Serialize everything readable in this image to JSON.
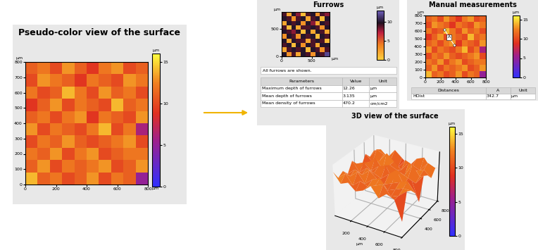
{
  "chart_data": [
    {
      "type": "heatmap",
      "title": "Pseudo-color view of the surface",
      "x_label": "µm",
      "y_label": "µm",
      "xlim": [
        0,
        800
      ],
      "ylim": [
        0,
        800
      ],
      "xticks": [
        0,
        200,
        400,
        600,
        800
      ],
      "yticks": [
        0,
        100,
        200,
        300,
        400,
        500,
        600,
        700,
        800
      ],
      "cells": [
        [
          11,
          12,
          10,
          13,
          11,
          9,
          12,
          13,
          10,
          11
        ],
        [
          10,
          13,
          12,
          11,
          9,
          12,
          11,
          10,
          13,
          12
        ],
        [
          12,
          10,
          11,
          14,
          12,
          10,
          13,
          11,
          12,
          10
        ],
        [
          9,
          11,
          13,
          10,
          12,
          11,
          10,
          14,
          11,
          12
        ],
        [
          11,
          12,
          10,
          12,
          13,
          9,
          12,
          11,
          10,
          13
        ],
        [
          13,
          10,
          12,
          11,
          10,
          12,
          14,
          10,
          12,
          6
        ],
        [
          10,
          12,
          11,
          13,
          11,
          10,
          11,
          12,
          13,
          10
        ],
        [
          12,
          11,
          13,
          10,
          12,
          13,
          10,
          11,
          12,
          12
        ],
        [
          11,
          13,
          10,
          12,
          11,
          12,
          13,
          10,
          11,
          13
        ],
        [
          14,
          11,
          12,
          10,
          11,
          13,
          10,
          12,
          11,
          5
        ]
      ],
      "colorbar": {
        "range": [
          0,
          16
        ],
        "ticks": [
          0,
          5,
          10,
          15
        ],
        "label": "µm"
      }
    },
    {
      "type": "heatmap",
      "title": "Furrows",
      "x_label": "µm",
      "y_label": "µm",
      "xlim": [
        0,
        800
      ],
      "ylim": [
        0,
        800
      ],
      "xticks": [
        0,
        500
      ],
      "yticks": [
        0,
        500
      ],
      "cells": [
        [
          9,
          2,
          10,
          8,
          1,
          9,
          10,
          3,
          9,
          8
        ],
        [
          10,
          9,
          3,
          9,
          10,
          2,
          9,
          10,
          1,
          10
        ],
        [
          2,
          10,
          9,
          10,
          3,
          10,
          8,
          2,
          10,
          9
        ],
        [
          9,
          1,
          10,
          2,
          9,
          9,
          10,
          9,
          3,
          10
        ],
        [
          10,
          9,
          8,
          10,
          1,
          10,
          2,
          10,
          9,
          2
        ],
        [
          3,
          10,
          9,
          3,
          10,
          9,
          10,
          1,
          10,
          9
        ],
        [
          10,
          2,
          10,
          9,
          9,
          2,
          9,
          10,
          9,
          1
        ],
        [
          9,
          10,
          1,
          10,
          3,
          10,
          9,
          2,
          10,
          10
        ],
        [
          2,
          9,
          10,
          9,
          10,
          1,
          10,
          9,
          3,
          9
        ],
        [
          10,
          3,
          9,
          2,
          10,
          9,
          3,
          10,
          9,
          12
        ]
      ],
      "colorbar": {
        "range": [
          0,
          13
        ],
        "ticks": [
          0,
          5,
          10
        ],
        "label": "µm"
      },
      "note": "All furrows are shown.",
      "table": {
        "columns": [
          "Parameters",
          "Value",
          "Unit"
        ],
        "rows": [
          [
            "Maximum depth of furrows",
            12.26,
            "µm"
          ],
          [
            "Mean depth of furrows",
            3.135,
            "µm"
          ],
          [
            "Mean density of furrows",
            470.2,
            "cm/cm2"
          ]
        ]
      }
    },
    {
      "type": "heatmap",
      "title": "Manual measurements",
      "y_label": "µm",
      "xlim": [
        0,
        800
      ],
      "ylim": [
        0,
        800
      ],
      "xticks": [
        0,
        200,
        400,
        600,
        800
      ],
      "yticks": [
        0,
        100,
        200,
        300,
        400,
        500,
        600,
        700,
        800
      ],
      "cells": [
        [
          11,
          12,
          10,
          13,
          11,
          9,
          12,
          13,
          10,
          11
        ],
        [
          10,
          13,
          12,
          11,
          9,
          12,
          11,
          10,
          13,
          12
        ],
        [
          12,
          10,
          11,
          14,
          12,
          10,
          13,
          11,
          12,
          10
        ],
        [
          9,
          11,
          13,
          10,
          12,
          11,
          10,
          14,
          11,
          12
        ],
        [
          11,
          12,
          10,
          12,
          13,
          9,
          12,
          11,
          10,
          13
        ],
        [
          13,
          10,
          12,
          11,
          10,
          12,
          14,
          10,
          12,
          6
        ],
        [
          10,
          12,
          11,
          13,
          11,
          10,
          11,
          12,
          13,
          10
        ],
        [
          12,
          11,
          13,
          10,
          12,
          13,
          10,
          11,
          12,
          12
        ],
        [
          11,
          13,
          10,
          12,
          11,
          12,
          13,
          10,
          11,
          13
        ],
        [
          14,
          11,
          12,
          10,
          11,
          13,
          10,
          12,
          11,
          5
        ]
      ],
      "colorbar": {
        "range": [
          0,
          16
        ],
        "ticks": [
          0,
          5,
          10,
          15
        ],
        "label": "µm"
      },
      "annotation": {
        "label": "A",
        "x": [
          250,
          380
        ],
        "y": [
          620,
          420
        ]
      },
      "table": {
        "columns": [
          "Distances",
          "A",
          "Unit"
        ],
        "rows": [
          [
            "HDist",
            342.7,
            "µm"
          ]
        ]
      }
    },
    {
      "type": "surface3d",
      "title": "3D view of the surface",
      "x_label": "µm",
      "xlim": [
        0,
        800
      ],
      "ylim": [
        0,
        800
      ],
      "zlim": [
        0,
        16
      ],
      "xticks": [
        200,
        400,
        600,
        800
      ],
      "yticks": [
        400,
        600,
        800
      ],
      "cells": [
        [
          11,
          12,
          10,
          13,
          11,
          9,
          12,
          13,
          10,
          11
        ],
        [
          10,
          13,
          12,
          11,
          9,
          12,
          11,
          10,
          13,
          12
        ],
        [
          12,
          10,
          11,
          14,
          12,
          10,
          13,
          11,
          12,
          10
        ],
        [
          9,
          11,
          13,
          10,
          12,
          11,
          10,
          14,
          11,
          12
        ],
        [
          11,
          12,
          10,
          12,
          13,
          9,
          12,
          11,
          10,
          13
        ],
        [
          13,
          10,
          12,
          11,
          10,
          12,
          14,
          10,
          12,
          6
        ],
        [
          10,
          12,
          11,
          13,
          11,
          10,
          11,
          12,
          13,
          10
        ],
        [
          12,
          11,
          13,
          10,
          12,
          13,
          10,
          11,
          12,
          12
        ],
        [
          11,
          13,
          10,
          12,
          11,
          12,
          13,
          10,
          11,
          13
        ],
        [
          14,
          11,
          12,
          10,
          11,
          13,
          10,
          12,
          11,
          5
        ]
      ],
      "colorbar": {
        "range": [
          0,
          16
        ],
        "ticks": [
          0,
          5,
          10,
          15
        ],
        "label": "µm"
      }
    }
  ]
}
